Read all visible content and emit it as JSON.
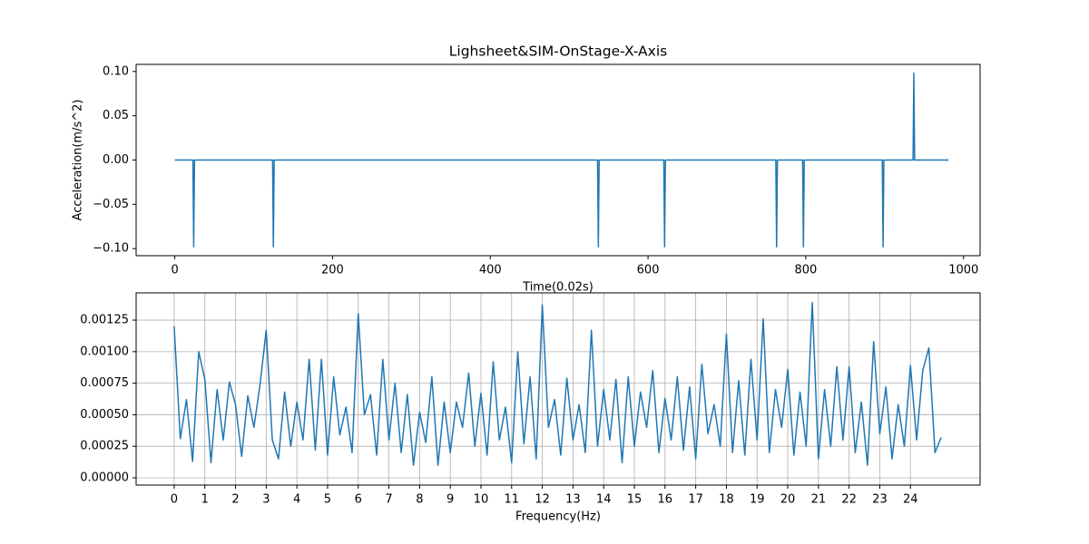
{
  "chart_data": [
    {
      "type": "line",
      "title": "Lighsheet&SIM-OnStage-X-Axis",
      "x_label": "Time(0.02s)",
      "y_label": "Acceleration(m/s^2)",
      "x": [
        0,
        23,
        24,
        25,
        124,
        125,
        126,
        536,
        537,
        538,
        620,
        621,
        622,
        762,
        763,
        764,
        796,
        797,
        798,
        897,
        898,
        899,
        936,
        937,
        938,
        981
      ],
      "values": [
        0,
        0,
        -0.098,
        0,
        0,
        -0.098,
        0,
        0,
        -0.098,
        0,
        0,
        -0.098,
        0,
        0,
        -0.098,
        0,
        0,
        -0.098,
        0,
        0,
        -0.098,
        0,
        0,
        0.098,
        0,
        0
      ],
      "color": "#1f77b4",
      "grid": false,
      "xlim": [
        -49,
        1021
      ],
      "xticks": [
        0,
        200,
        400,
        600,
        800,
        1000
      ],
      "ylim": [
        -0.108,
        0.108
      ],
      "yticks": [
        {
          "value": -0.1,
          "label": "−0.10"
        },
        {
          "value": -0.05,
          "label": "−0.05"
        },
        {
          "value": 0,
          "label": "0.00"
        },
        {
          "value": 0.05,
          "label": "0.05"
        },
        {
          "value": 0.1,
          "label": "0.10"
        }
      ]
    },
    {
      "type": "line",
      "x_label": "Frequency(Hz)",
      "x": [
        0,
        0.2,
        0.4,
        0.6,
        0.8,
        1,
        1.2,
        1.4,
        1.6,
        1.8,
        2,
        2.2,
        2.4,
        2.6,
        2.8,
        3,
        3.2,
        3.4,
        3.6,
        3.8,
        4,
        4.2,
        4.4,
        4.6,
        4.8,
        5,
        5.2,
        5.4,
        5.6,
        5.8,
        6,
        6.2,
        6.4,
        6.6,
        6.8,
        7,
        7.2,
        7.4,
        7.6,
        7.8,
        8,
        8.2,
        8.4,
        8.6,
        8.8,
        9,
        9.2,
        9.4,
        9.6,
        9.8,
        10,
        10.2,
        10.4,
        10.6,
        10.8,
        11,
        11.2,
        11.4,
        11.6,
        11.8,
        12,
        12.2,
        12.4,
        12.6,
        12.8,
        13,
        13.2,
        13.4,
        13.6,
        13.8,
        14,
        14.2,
        14.4,
        14.6,
        14.8,
        15,
        15.2,
        15.4,
        15.6,
        15.8,
        16,
        16.2,
        16.4,
        16.6,
        16.8,
        17,
        17.2,
        17.4,
        17.6,
        17.8,
        18,
        18.2,
        18.4,
        18.6,
        18.8,
        19,
        19.2,
        19.4,
        19.6,
        19.8,
        20,
        20.2,
        20.4,
        20.6,
        20.8,
        21,
        21.2,
        21.4,
        21.6,
        21.8,
        22,
        22.2,
        22.4,
        22.6,
        22.8,
        23,
        23.2,
        23.4,
        23.6,
        23.8,
        24,
        24.2,
        24.4,
        24.6,
        24.8,
        25
      ],
      "values": [
        0.0012,
        0.00031,
        0.00062,
        0.00013,
        0.001,
        0.00078,
        0.00012,
        0.0007,
        0.0003,
        0.00076,
        0.00058,
        0.00017,
        0.00065,
        0.0004,
        0.00074,
        0.00117,
        0.0003,
        0.00015,
        0.00068,
        0.00025,
        0.0006,
        0.0003,
        0.00094,
        0.00022,
        0.00094,
        0.00018,
        0.0008,
        0.00034,
        0.00056,
        0.0002,
        0.0013,
        0.0005,
        0.00066,
        0.00018,
        0.00094,
        0.0003,
        0.00075,
        0.0002,
        0.00066,
        0.0001,
        0.00052,
        0.00028,
        0.0008,
        0.0001,
        0.0006,
        0.0002,
        0.0006,
        0.0004,
        0.00083,
        0.00025,
        0.00067,
        0.00018,
        0.00092,
        0.0003,
        0.00056,
        0.00012,
        0.001,
        0.00027,
        0.0008,
        0.00015,
        0.00137,
        0.0004,
        0.00062,
        0.00018,
        0.00079,
        0.0003,
        0.00058,
        0.0002,
        0.00117,
        0.00025,
        0.0007,
        0.0003,
        0.00078,
        0.00012,
        0.0008,
        0.00025,
        0.00068,
        0.0004,
        0.00085,
        0.0002,
        0.00063,
        0.0003,
        0.0008,
        0.00022,
        0.00072,
        0.00015,
        0.0009,
        0.00035,
        0.00058,
        0.00025,
        0.00114,
        0.0002,
        0.00077,
        0.00018,
        0.00094,
        0.0003,
        0.00126,
        0.0002,
        0.0007,
        0.0004,
        0.00086,
        0.00018,
        0.00068,
        0.00025,
        0.00139,
        0.00015,
        0.0007,
        0.00025,
        0.00088,
        0.0003,
        0.00088,
        0.0002,
        0.0006,
        0.0001,
        0.00108,
        0.00035,
        0.00072,
        0.00015,
        0.00058,
        0.00025,
        0.00089,
        0.0003,
        0.00085,
        0.00103,
        0.0002,
        0.00032
      ],
      "color": "#1f77b4",
      "grid": true,
      "xlim": [
        -1.24,
        26.27
      ],
      "xticks": [
        0,
        1,
        2,
        3,
        4,
        5,
        6,
        7,
        8,
        9,
        10,
        11,
        12,
        13,
        14,
        15,
        16,
        17,
        18,
        19,
        20,
        21,
        22,
        23,
        24
      ],
      "ylim": [
        -5.75e-05,
        0.001466
      ],
      "yticks": [
        {
          "value": 0,
          "label": "0.00000"
        },
        {
          "value": 0.00025,
          "label": "0.00025"
        },
        {
          "value": 0.0005,
          "label": "0.00050"
        },
        {
          "value": 0.00075,
          "label": "0.00075"
        },
        {
          "value": 0.001,
          "label": "0.00100"
        },
        {
          "value": 0.00125,
          "label": "0.00125"
        }
      ]
    }
  ]
}
